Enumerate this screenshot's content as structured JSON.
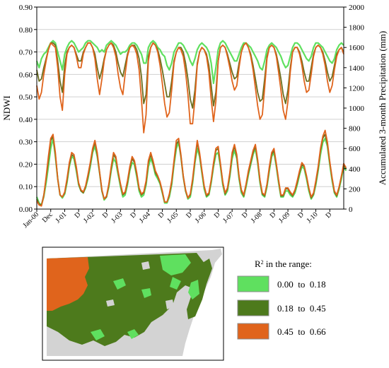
{
  "colors": {
    "light_green": "#5fe05f",
    "dark_green": "#4d7a1c",
    "orange": "#e0641c",
    "olive": "#6b6f1f",
    "gridline": "#d0d0d0",
    "land": "#d3d3d3"
  },
  "chart_data": [
    {
      "type": "line",
      "title": "",
      "ylabel": "NDWI",
      "y2label": "Accumulated 3-month Precipitation (mm)",
      "ylim": [
        0,
        0.9
      ],
      "y2lim": [
        0,
        2000
      ],
      "yticks": [
        "0.00",
        "0.10",
        "0.20",
        "0.30",
        "0.40",
        "0.50",
        "0.60",
        "0.70",
        "0.80",
        "0.90"
      ],
      "y2ticks": [
        "0",
        "200",
        "400",
        "600",
        "800",
        "1000",
        "1200",
        "1400",
        "1600",
        "1800",
        "2000"
      ],
      "grid": true,
      "x_tick_labels": [
        "Jan-00",
        "Dec",
        "J-01",
        "D",
        "J-02",
        "D",
        "J-03",
        "D",
        "J-04",
        "D",
        "J-05",
        "D",
        "J-06",
        "D",
        "J-07",
        "D",
        "J-08",
        "D",
        "J-09",
        "D",
        "J-10",
        "D"
      ],
      "x_range_months": [
        0,
        132
      ],
      "series_note": "upper group: NDWI (three region curves, left axis); lower group: accumulated 3-month precipitation (three region curves, right axis)",
      "upper_series": [
        {
          "color_key": "light_green",
          "values": [
            0.66,
            0.63,
            0.67,
            0.69,
            0.7,
            0.72,
            0.74,
            0.75,
            0.74,
            0.7,
            0.66,
            0.62,
            0.69,
            0.72,
            0.74,
            0.75,
            0.74,
            0.72,
            0.7,
            0.71,
            0.72,
            0.74,
            0.75,
            0.75,
            0.74,
            0.73,
            0.72,
            0.7,
            0.71,
            0.7,
            0.73,
            0.74,
            0.75,
            0.74,
            0.73,
            0.71,
            0.69,
            0.7,
            0.7,
            0.71,
            0.73,
            0.74,
            0.74,
            0.73,
            0.71,
            0.69,
            0.65,
            0.65,
            0.72,
            0.74,
            0.75,
            0.74,
            0.72,
            0.71,
            0.69,
            0.68,
            0.64,
            0.62,
            0.65,
            0.7,
            0.72,
            0.74,
            0.74,
            0.73,
            0.71,
            0.69,
            0.66,
            0.64,
            0.67,
            0.71,
            0.73,
            0.74,
            0.73,
            0.72,
            0.7,
            0.65,
            0.56,
            0.63,
            0.71,
            0.74,
            0.75,
            0.74,
            0.72,
            0.7,
            0.68,
            0.66,
            0.66,
            0.69,
            0.72,
            0.74,
            0.74,
            0.73,
            0.72,
            0.7,
            0.68,
            0.66,
            0.63,
            0.62,
            0.66,
            0.71,
            0.73,
            0.74,
            0.73,
            0.72,
            0.7,
            0.68,
            0.65,
            0.63,
            0.64,
            0.68,
            0.72,
            0.74,
            0.74,
            0.73,
            0.71,
            0.69,
            0.67,
            0.66,
            0.68,
            0.72,
            0.74,
            0.74,
            0.73,
            0.72,
            0.7,
            0.68,
            0.66,
            0.65,
            0.67,
            0.71,
            0.73,
            0.74,
            0.73
          ]
        },
        {
          "color_key": "olive",
          "values": [
            0.62,
            0.57,
            0.58,
            0.63,
            0.67,
            0.71,
            0.74,
            0.74,
            0.73,
            0.66,
            0.57,
            0.52,
            0.64,
            0.7,
            0.72,
            0.73,
            0.72,
            0.69,
            0.66,
            0.66,
            0.7,
            0.72,
            0.74,
            0.74,
            0.72,
            0.69,
            0.63,
            0.58,
            0.62,
            0.67,
            0.71,
            0.73,
            0.74,
            0.73,
            0.7,
            0.65,
            0.61,
            0.59,
            0.64,
            0.69,
            0.72,
            0.73,
            0.73,
            0.71,
            0.67,
            0.59,
            0.47,
            0.51,
            0.68,
            0.72,
            0.74,
            0.73,
            0.71,
            0.67,
            0.62,
            0.56,
            0.5,
            0.5,
            0.57,
            0.66,
            0.7,
            0.72,
            0.72,
            0.7,
            0.65,
            0.58,
            0.49,
            0.45,
            0.53,
            0.65,
            0.7,
            0.72,
            0.71,
            0.69,
            0.64,
            0.55,
            0.46,
            0.52,
            0.66,
            0.72,
            0.73,
            0.72,
            0.69,
            0.65,
            0.61,
            0.58,
            0.59,
            0.65,
            0.7,
            0.73,
            0.74,
            0.72,
            0.69,
            0.64,
            0.58,
            0.52,
            0.48,
            0.49,
            0.58,
            0.68,
            0.72,
            0.73,
            0.72,
            0.69,
            0.64,
            0.58,
            0.51,
            0.47,
            0.53,
            0.63,
            0.7,
            0.72,
            0.72,
            0.7,
            0.66,
            0.61,
            0.57,
            0.57,
            0.63,
            0.69,
            0.72,
            0.73,
            0.72,
            0.7,
            0.66,
            0.61,
            0.57,
            0.59,
            0.64,
            0.69,
            0.71,
            0.72,
            0.7
          ]
        },
        {
          "color_key": "orange",
          "values": [
            0.55,
            0.49,
            0.52,
            0.6,
            0.66,
            0.71,
            0.74,
            0.73,
            0.72,
            0.63,
            0.5,
            0.44,
            0.6,
            0.69,
            0.72,
            0.73,
            0.72,
            0.68,
            0.63,
            0.63,
            0.69,
            0.72,
            0.74,
            0.74,
            0.72,
            0.67,
            0.58,
            0.51,
            0.58,
            0.66,
            0.71,
            0.73,
            0.74,
            0.72,
            0.68,
            0.6,
            0.54,
            0.51,
            0.6,
            0.68,
            0.72,
            0.73,
            0.72,
            0.69,
            0.62,
            0.49,
            0.34,
            0.42,
            0.66,
            0.72,
            0.74,
            0.73,
            0.7,
            0.64,
            0.56,
            0.47,
            0.41,
            0.43,
            0.53,
            0.65,
            0.7,
            0.72,
            0.71,
            0.68,
            0.61,
            0.51,
            0.38,
            0.38,
            0.49,
            0.64,
            0.7,
            0.72,
            0.71,
            0.68,
            0.61,
            0.49,
            0.39,
            0.48,
            0.66,
            0.72,
            0.73,
            0.72,
            0.68,
            0.63,
            0.57,
            0.53,
            0.55,
            0.63,
            0.7,
            0.73,
            0.74,
            0.72,
            0.68,
            0.62,
            0.54,
            0.46,
            0.4,
            0.42,
            0.54,
            0.67,
            0.72,
            0.73,
            0.72,
            0.68,
            0.61,
            0.53,
            0.44,
            0.4,
            0.48,
            0.61,
            0.7,
            0.72,
            0.72,
            0.69,
            0.64,
            0.57,
            0.52,
            0.53,
            0.6,
            0.68,
            0.72,
            0.73,
            0.72,
            0.69,
            0.64,
            0.57,
            0.52,
            0.55,
            0.62,
            0.68,
            0.71,
            0.72,
            0.69
          ]
        }
      ],
      "lower_series": [
        {
          "color_key": "light_green",
          "values": [
            120,
            60,
            40,
            120,
            260,
            420,
            600,
            700,
            520,
            300,
            140,
            110,
            150,
            260,
            420,
            520,
            500,
            380,
            240,
            180,
            160,
            210,
            300,
            420,
            560,
            620,
            520,
            360,
            180,
            90,
            120,
            220,
            380,
            500,
            460,
            340,
            220,
            120,
            140,
            240,
            380,
            460,
            440,
            320,
            180,
            120,
            140,
            240,
            420,
            500,
            440,
            340,
            300,
            250,
            160,
            60,
            60,
            120,
            240,
            440,
            600,
            660,
            520,
            320,
            180,
            100,
            120,
            260,
            460,
            600,
            520,
            360,
            200,
            120,
            140,
            260,
            420,
            540,
            560,
            420,
            240,
            140,
            180,
            320,
            500,
            580,
            500,
            300,
            160,
            120,
            220,
            340,
            440,
            540,
            600,
            460,
            260,
            140,
            120,
            220,
            380,
            520,
            560,
            420,
            260,
            120,
            120,
            180,
            180,
            140,
            120,
            160,
            240,
            340,
            420,
            400,
            300,
            180,
            100,
            140,
            240,
            380,
            540,
            660,
            700,
            620,
            440,
            280,
            160,
            120,
            200,
            300,
            420,
            380
          ]
        },
        {
          "color_key": "olive",
          "values": [
            100,
            50,
            40,
            140,
            300,
            480,
            680,
            720,
            540,
            300,
            140,
            120,
            160,
            280,
            440,
            540,
            520,
            400,
            250,
            180,
            160,
            220,
            320,
            440,
            580,
            660,
            540,
            360,
            180,
            100,
            120,
            240,
            400,
            540,
            500,
            360,
            240,
            140,
            160,
            260,
            400,
            500,
            460,
            340,
            200,
            140,
            160,
            260,
            460,
            540,
            460,
            360,
            320,
            260,
            170,
            70,
            70,
            140,
            260,
            460,
            640,
            680,
            520,
            320,
            180,
            110,
            140,
            280,
            480,
            660,
            540,
            380,
            220,
            130,
            150,
            280,
            440,
            580,
            600,
            440,
            260,
            150,
            200,
            340,
            540,
            620,
            520,
            320,
            180,
            130,
            240,
            360,
            460,
            560,
            620,
            480,
            280,
            150,
            130,
            240,
            400,
            540,
            580,
            440,
            280,
            130,
            130,
            200,
            200,
            160,
            130,
            180,
            260,
            360,
            440,
            420,
            320,
            200,
            110,
            150,
            260,
            400,
            580,
            700,
            740,
            640,
            460,
            300,
            170,
            130,
            210,
            320,
            440,
            400
          ]
        },
        {
          "color_key": "orange",
          "values": [
            80,
            40,
            30,
            130,
            320,
            520,
            700,
            740,
            560,
            300,
            140,
            120,
            170,
            300,
            460,
            560,
            540,
            420,
            260,
            190,
            170,
            230,
            340,
            460,
            600,
            680,
            560,
            370,
            190,
            100,
            130,
            250,
            420,
            560,
            520,
            370,
            250,
            150,
            170,
            280,
            420,
            520,
            480,
            360,
            210,
            150,
            170,
            280,
            480,
            560,
            480,
            380,
            330,
            270,
            180,
            70,
            70,
            150,
            280,
            480,
            680,
            700,
            540,
            330,
            190,
            110,
            150,
            300,
            500,
            680,
            560,
            390,
            230,
            140,
            160,
            290,
            460,
            600,
            620,
            450,
            270,
            160,
            210,
            360,
            560,
            640,
            540,
            330,
            190,
            140,
            250,
            380,
            480,
            580,
            640,
            490,
            290,
            160,
            140,
            250,
            420,
            560,
            600,
            450,
            290,
            140,
            140,
            210,
            210,
            170,
            140,
            190,
            280,
            380,
            460,
            430,
            330,
            210,
            120,
            160,
            280,
            420,
            600,
            720,
            780,
            660,
            470,
            310,
            180,
            140,
            220,
            330,
            450,
            410
          ]
        }
      ]
    }
  ],
  "map": {
    "legend_title": "R² in the range:",
    "legend_title_prefix": "R",
    "legend_title_sup": "2",
    "legend_title_suffix": " in the range:",
    "legend_items": [
      {
        "label": "0.00  to  0.18",
        "color_key": "light_green"
      },
      {
        "label": "0.18  to  0.45",
        "color_key": "dark_green"
      },
      {
        "label": "0.45  to  0.66",
        "color_key": "orange"
      }
    ]
  }
}
